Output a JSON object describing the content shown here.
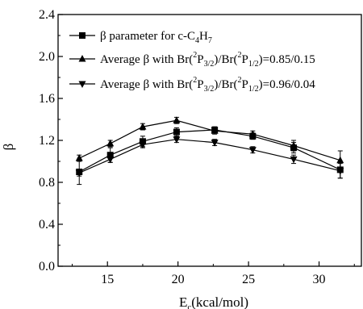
{
  "chart_data": {
    "type": "line",
    "title": "",
    "xlabel": "E",
    "xlabel_subscript": "c",
    "xlabel_unit": "(kcal/mol)",
    "ylabel": "β",
    "xlim": [
      11.5,
      33
    ],
    "ylim": [
      0.0,
      2.4
    ],
    "x_ticks": [
      15,
      20,
      25,
      30
    ],
    "x_tick_labels": [
      "15",
      "20",
      "25",
      "30"
    ],
    "y_ticks": [
      0.0,
      0.4,
      0.8,
      1.2,
      1.6,
      2.0,
      2.4
    ],
    "y_tick_labels": [
      "0.0",
      "0.4",
      "0.8",
      "1.2",
      "1.6",
      "2.0",
      "2.4"
    ],
    "grid": false,
    "legend_position": "top-left",
    "series": [
      {
        "name_parts": [
          "β parameter for c-C",
          "4",
          "H",
          "7"
        ],
        "marker": "square",
        "x": [
          13.0,
          15.2,
          17.5,
          19.9,
          22.6,
          25.3,
          28.2,
          31.5
        ],
        "y": [
          0.9,
          1.06,
          1.19,
          1.28,
          1.3,
          1.24,
          1.13,
          0.92
        ],
        "error": [
          0.12,
          0.07,
          0.05,
          0.04,
          0.03,
          0.03,
          0.05,
          0.08
        ]
      },
      {
        "name_parts": [
          "Average β with Br(",
          "2",
          "P",
          "3/2",
          ")/Br(",
          "2",
          "P",
          "1/2",
          ")=0.85/0.15"
        ],
        "marker": "triangle-up",
        "x": [
          13.0,
          15.2,
          17.5,
          19.9,
          22.6,
          25.3,
          28.2,
          31.5
        ],
        "y": [
          1.03,
          1.17,
          1.33,
          1.39,
          1.29,
          1.26,
          1.15,
          1.01
        ],
        "error": [
          0.03,
          0.03,
          0.03,
          0.03,
          0.03,
          0.03,
          0.05,
          0.09
        ]
      },
      {
        "name_parts": [
          "Average β with Br(",
          "2",
          "P",
          "3/2",
          ")/Br(",
          "2",
          "P",
          "1/2",
          ")=0.96/0.04"
        ],
        "marker": "triangle-down",
        "x": [
          13.0,
          15.2,
          17.5,
          19.9,
          22.6,
          25.3,
          28.2,
          31.5
        ],
        "y": [
          0.89,
          1.02,
          1.16,
          1.21,
          1.18,
          1.11,
          1.02,
          0.91
        ],
        "error": [
          0.03,
          0.03,
          0.03,
          0.03,
          0.03,
          0.03,
          0.04,
          0.07
        ]
      }
    ]
  }
}
